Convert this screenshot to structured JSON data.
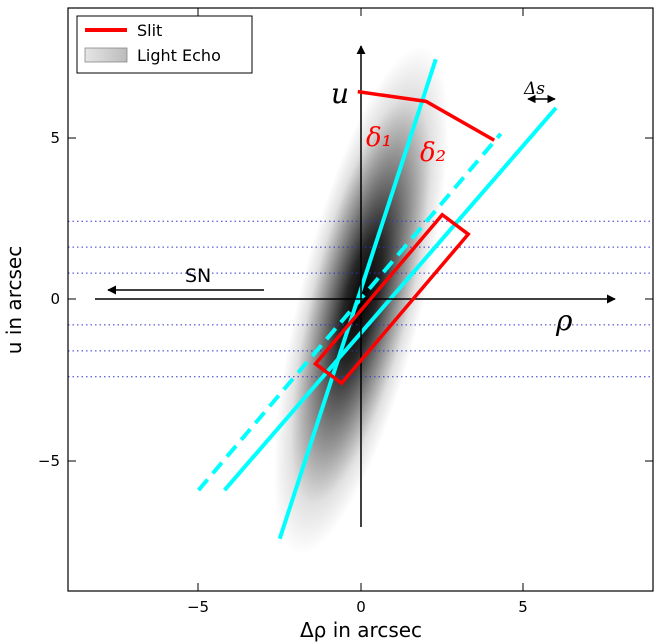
{
  "chart_data": {
    "type": "diagram",
    "xlabel": "Δρ in arcsec",
    "ylabel": "u in arcsec",
    "xlim": [
      -9,
      9
    ],
    "ylim": [
      -9,
      9
    ],
    "xticks": [
      -5,
      0,
      5
    ],
    "yticks": [
      -5,
      0,
      5
    ],
    "xtick_labels": [
      "−5",
      "0",
      "5"
    ],
    "ytick_labels": [
      "−5",
      "0",
      "5"
    ],
    "legend": {
      "placement": "top-left",
      "entries": [
        {
          "label": "Slit",
          "color": "#ff0000",
          "kind": "line"
        },
        {
          "label": "Light Echo",
          "color": "#d9d9d9",
          "kind": "patch"
        }
      ]
    },
    "labels": {
      "u_axis": "u",
      "rho_axis": "ρ",
      "sn": "SN",
      "delta1": "δ₁",
      "delta2": "δ₂",
      "delta_s": "Δs"
    },
    "colors": {
      "slit": "#ff0000",
      "echo_lines": "#00ffff",
      "grid_dotted": "#3333cc"
    },
    "dotted_levels_u": [
      2.4,
      1.6,
      0.8,
      -0.8,
      -1.6,
      -2.4
    ],
    "echo_lines": [
      {
        "style": "solid",
        "from": [
          -2.5,
          -7.4
        ],
        "to": [
          2.3,
          7.4
        ]
      },
      {
        "style": "solid",
        "from": [
          -4.2,
          -5.9
        ],
        "to": [
          6.0,
          5.9
        ]
      },
      {
        "style": "dashed",
        "from": [
          -5.0,
          -5.9
        ],
        "to": [
          4.3,
          5.1
        ]
      }
    ],
    "slit": [
      [
        -0.6,
        -2.6
      ],
      [
        3.3,
        2.0
      ],
      [
        2.5,
        2.6
      ],
      [
        -1.4,
        -2.0
      ]
    ],
    "slit_leader": [
      [
        -0.1,
        6.4
      ],
      [
        2.0,
        6.1
      ],
      [
        4.1,
        4.9
      ]
    ]
  }
}
